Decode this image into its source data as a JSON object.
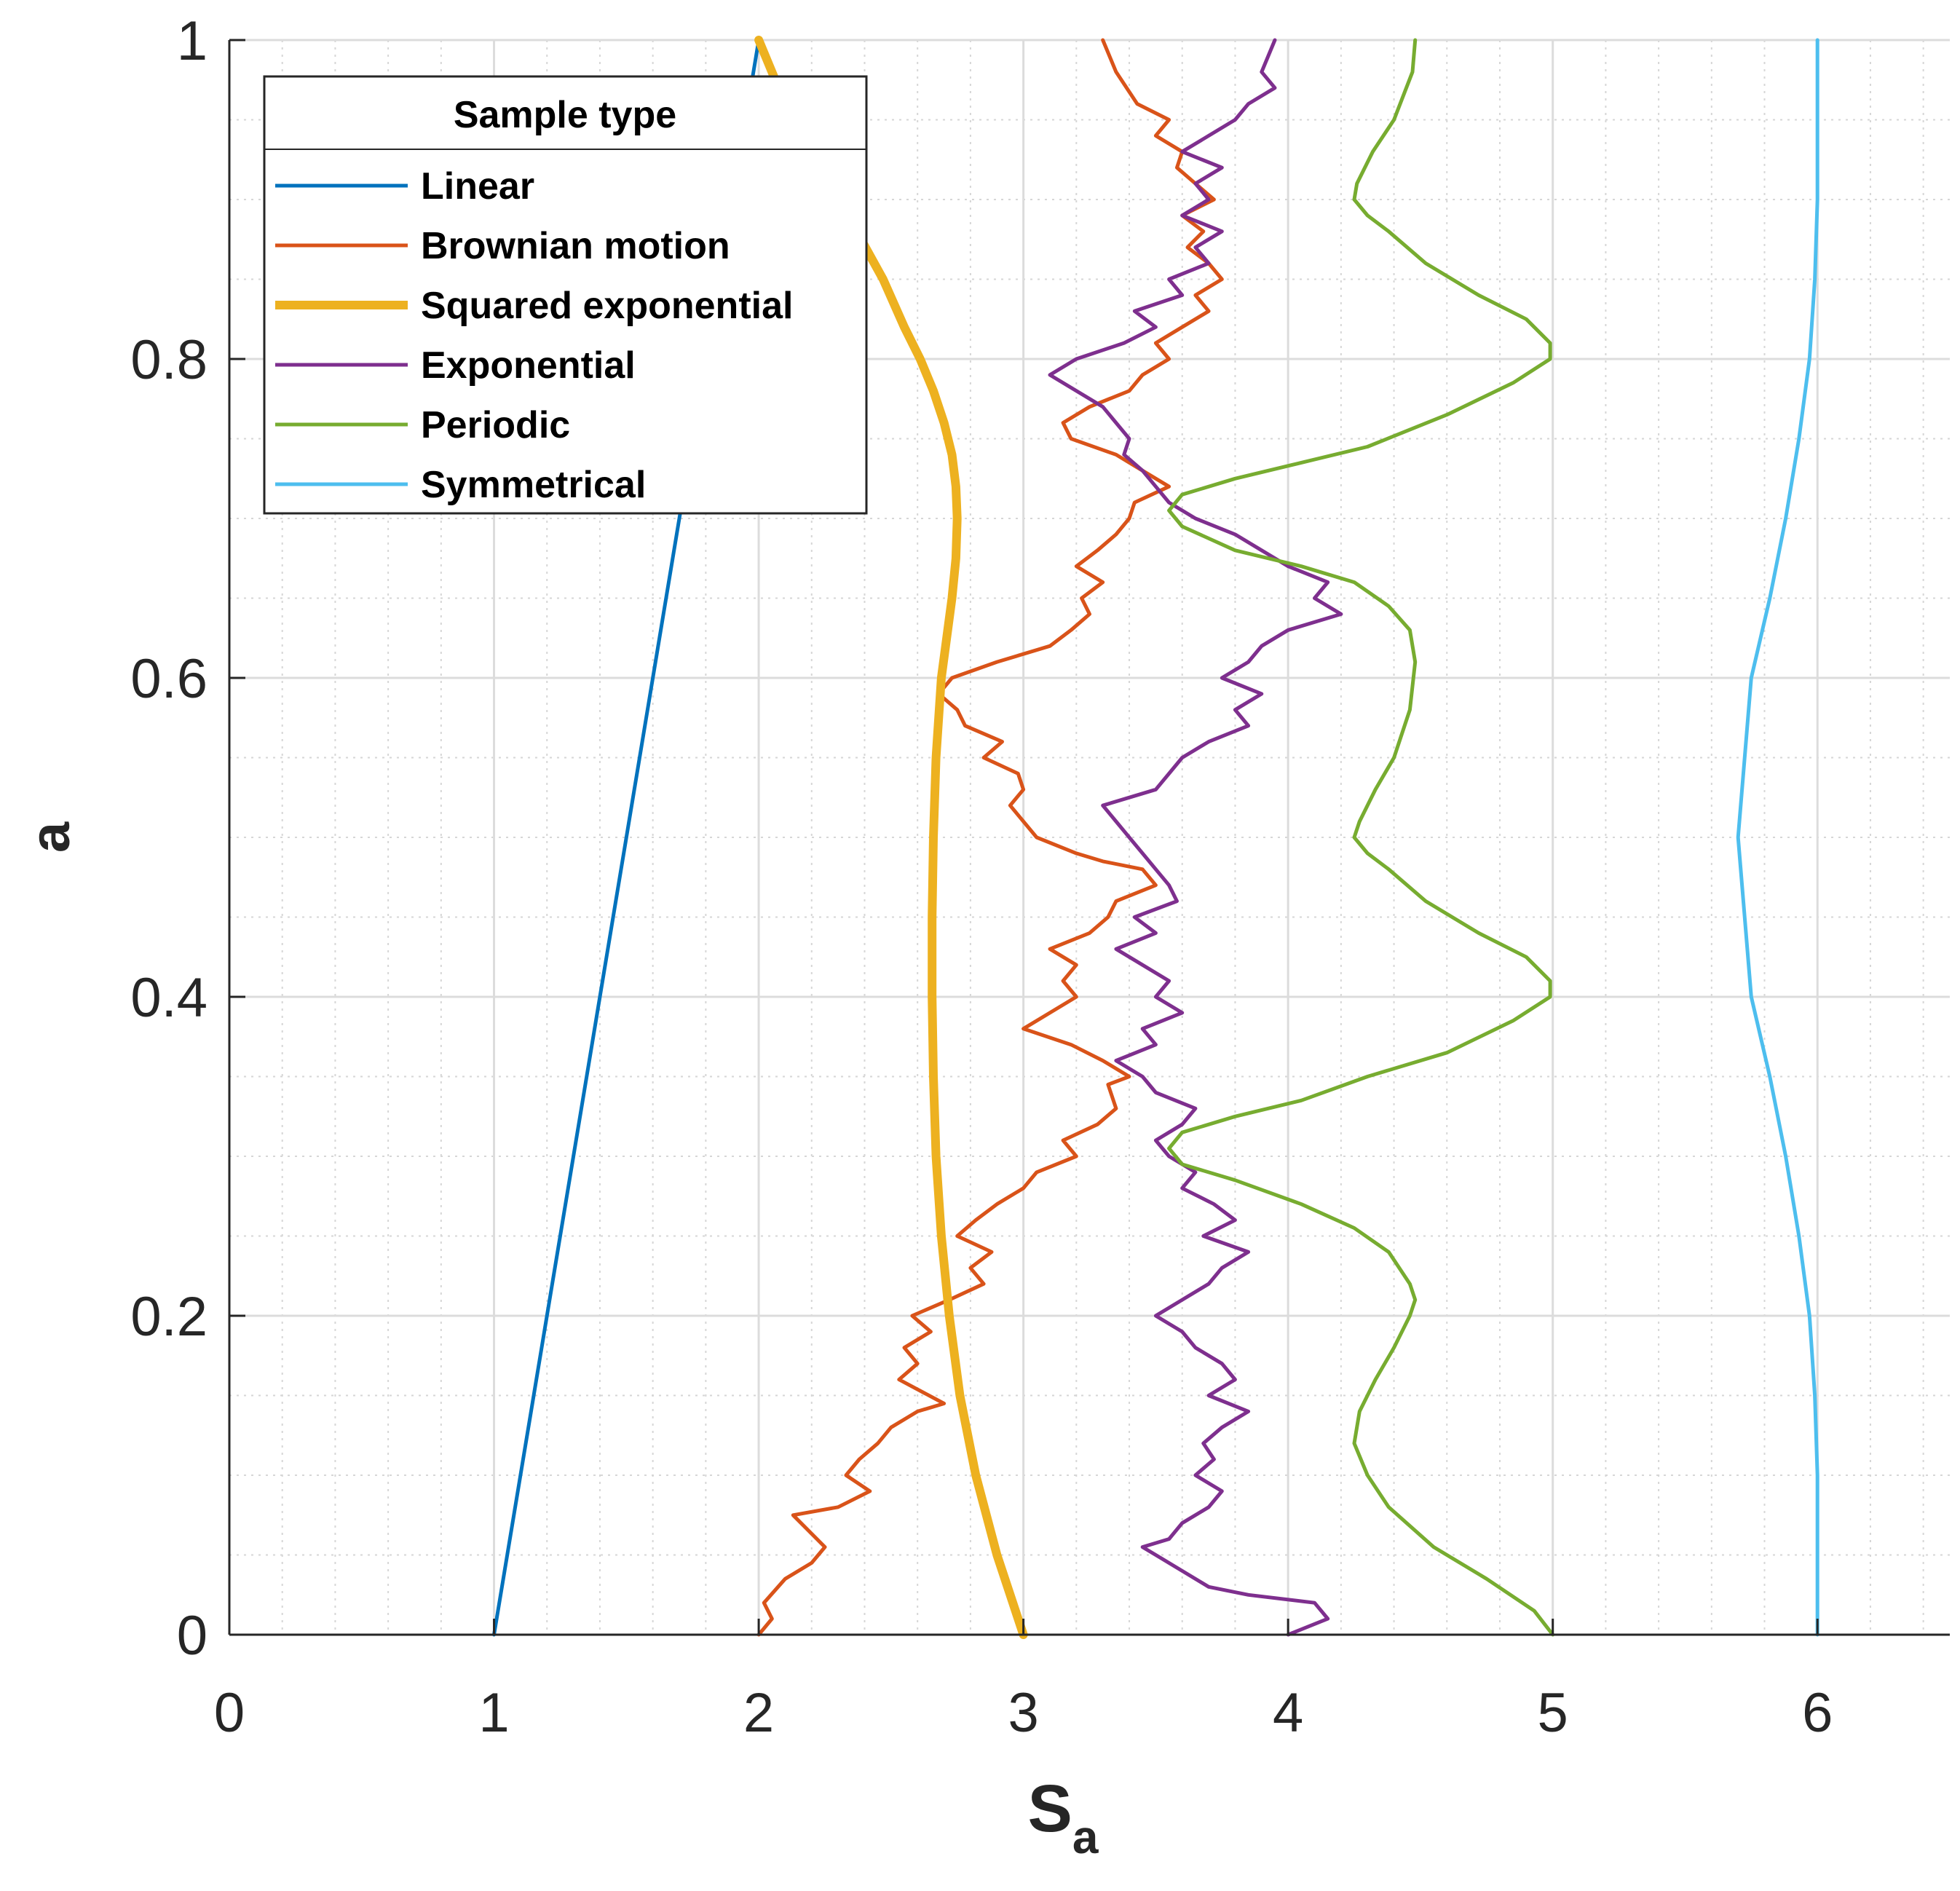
{
  "chart_data": {
    "type": "line",
    "title": "",
    "xlabel": "S",
    "xlabel_subscript": "a",
    "ylabel": "a",
    "xlim": [
      0,
      6.5
    ],
    "ylim": [
      0,
      1
    ],
    "xticks": [
      0,
      1,
      2,
      3,
      4,
      5,
      6
    ],
    "xtick_labels": [
      "0",
      "1",
      "2",
      "3",
      "4",
      "5",
      "6"
    ],
    "yticks": [
      0,
      0.2,
      0.4,
      0.6,
      0.8,
      1
    ],
    "ytick_labels": [
      "0",
      "0.2",
      "0.4",
      "0.6",
      "0.8",
      "1"
    ],
    "grid": "major and minor",
    "legend_title": "Sample type",
    "legend_position": "top-left",
    "series": [
      {
        "name": "Linear",
        "color": "#0072BD",
        "x": [
          1.0,
          2.0
        ],
        "y": [
          0.0,
          1.0
        ]
      },
      {
        "name": "Brownian motion",
        "color": "#D95319",
        "x": [
          2.0,
          2.05,
          2.02,
          2.1,
          2.2,
          2.25,
          2.13,
          2.3,
          2.42,
          2.33,
          2.38,
          2.45,
          2.5,
          2.6,
          2.7,
          2.53,
          2.6,
          2.55,
          2.65,
          2.58,
          2.72,
          2.85,
          2.8,
          2.88,
          2.75,
          2.82,
          2.9,
          3.0,
          3.05,
          3.2,
          3.15,
          3.28,
          3.35,
          3.32,
          3.4,
          3.3,
          3.18,
          3.0,
          3.1,
          3.2,
          3.15,
          3.2,
          3.1,
          3.25,
          3.32,
          3.35,
          3.5,
          3.45,
          3.3,
          3.2,
          3.05,
          3.0,
          2.95,
          3.0,
          2.98,
          2.85,
          2.92,
          2.78,
          2.75,
          2.68,
          2.73,
          2.9,
          3.1,
          3.18,
          3.25,
          3.22,
          3.3,
          3.2,
          3.28,
          3.35,
          3.4,
          3.42,
          3.55,
          3.45,
          3.35,
          3.18,
          3.15,
          3.25,
          3.4,
          3.45,
          3.55,
          3.5,
          3.6,
          3.7,
          3.65,
          3.75,
          3.7,
          3.62,
          3.68,
          3.6,
          3.72,
          3.65,
          3.58,
          3.6,
          3.5,
          3.55,
          3.43,
          3.35,
          3.3
        ],
        "y": [
          0.0,
          0.01,
          0.02,
          0.035,
          0.045,
          0.055,
          0.075,
          0.08,
          0.09,
          0.1,
          0.11,
          0.12,
          0.13,
          0.14,
          0.145,
          0.16,
          0.17,
          0.18,
          0.19,
          0.2,
          0.21,
          0.22,
          0.23,
          0.24,
          0.25,
          0.26,
          0.27,
          0.28,
          0.29,
          0.3,
          0.31,
          0.32,
          0.33,
          0.345,
          0.35,
          0.36,
          0.37,
          0.38,
          0.39,
          0.4,
          0.41,
          0.42,
          0.43,
          0.44,
          0.45,
          0.46,
          0.47,
          0.48,
          0.485,
          0.49,
          0.5,
          0.51,
          0.52,
          0.53,
          0.54,
          0.55,
          0.56,
          0.57,
          0.58,
          0.59,
          0.6,
          0.61,
          0.62,
          0.63,
          0.64,
          0.65,
          0.66,
          0.67,
          0.68,
          0.69,
          0.7,
          0.71,
          0.72,
          0.73,
          0.74,
          0.75,
          0.76,
          0.77,
          0.78,
          0.79,
          0.8,
          0.81,
          0.82,
          0.83,
          0.84,
          0.85,
          0.86,
          0.87,
          0.88,
          0.89,
          0.9,
          0.91,
          0.92,
          0.93,
          0.94,
          0.95,
          0.96,
          0.98,
          1.0
        ]
      },
      {
        "name": "Squared exponential",
        "color": "#EDB120",
        "x": [
          3.0,
          2.9,
          2.82,
          2.76,
          2.72,
          2.69,
          2.67,
          2.66,
          2.655,
          2.655,
          2.66,
          2.67,
          2.69,
          2.71,
          2.73,
          2.745,
          2.75,
          2.745,
          2.73,
          2.7,
          2.66,
          2.61,
          2.55,
          2.47,
          2.37,
          2.24,
          2.1,
          2.0
        ],
        "y": [
          0.0,
          0.05,
          0.1,
          0.15,
          0.2,
          0.25,
          0.3,
          0.35,
          0.4,
          0.45,
          0.5,
          0.55,
          0.6,
          0.625,
          0.65,
          0.675,
          0.7,
          0.72,
          0.74,
          0.76,
          0.78,
          0.8,
          0.82,
          0.85,
          0.88,
          0.92,
          0.96,
          1.0
        ]
      },
      {
        "name": "Exponential",
        "color": "#7E2F8E",
        "x": [
          4.0,
          4.15,
          4.1,
          3.85,
          3.7,
          3.6,
          3.5,
          3.45,
          3.55,
          3.6,
          3.7,
          3.75,
          3.65,
          3.72,
          3.68,
          3.75,
          3.85,
          3.7,
          3.8,
          3.75,
          3.65,
          3.6,
          3.5,
          3.6,
          3.7,
          3.75,
          3.85,
          3.68,
          3.8,
          3.72,
          3.6,
          3.65,
          3.55,
          3.5,
          3.6,
          3.65,
          3.5,
          3.45,
          3.35,
          3.5,
          3.45,
          3.6,
          3.5,
          3.55,
          3.45,
          3.35,
          3.5,
          3.42,
          3.58,
          3.55,
          3.5,
          3.45,
          3.4,
          3.35,
          3.3,
          3.5,
          3.55,
          3.6,
          3.7,
          3.85,
          3.8,
          3.9,
          3.75,
          3.85,
          3.9,
          4.0,
          4.2,
          4.1,
          4.15,
          4.0,
          3.9,
          3.8,
          3.65,
          3.55,
          3.5,
          3.45,
          3.38,
          3.4,
          3.3,
          3.1,
          3.2,
          3.38,
          3.5,
          3.42,
          3.6,
          3.55,
          3.7,
          3.65,
          3.75,
          3.6,
          3.7,
          3.65,
          3.75,
          3.6,
          3.7,
          3.8,
          3.85,
          3.95,
          3.9,
          3.95
        ],
        "y": [
          0.0,
          0.01,
          0.02,
          0.025,
          0.03,
          0.04,
          0.05,
          0.055,
          0.06,
          0.07,
          0.08,
          0.09,
          0.1,
          0.11,
          0.12,
          0.13,
          0.14,
          0.15,
          0.16,
          0.17,
          0.18,
          0.19,
          0.2,
          0.21,
          0.22,
          0.23,
          0.24,
          0.25,
          0.26,
          0.27,
          0.28,
          0.29,
          0.3,
          0.31,
          0.32,
          0.33,
          0.34,
          0.35,
          0.36,
          0.37,
          0.38,
          0.39,
          0.4,
          0.41,
          0.42,
          0.43,
          0.44,
          0.45,
          0.46,
          0.47,
          0.48,
          0.49,
          0.5,
          0.51,
          0.52,
          0.53,
          0.54,
          0.55,
          0.56,
          0.57,
          0.58,
          0.59,
          0.6,
          0.61,
          0.62,
          0.63,
          0.64,
          0.65,
          0.66,
          0.67,
          0.68,
          0.69,
          0.7,
          0.71,
          0.72,
          0.73,
          0.74,
          0.75,
          0.77,
          0.79,
          0.8,
          0.81,
          0.82,
          0.83,
          0.84,
          0.85,
          0.86,
          0.87,
          0.88,
          0.89,
          0.9,
          0.91,
          0.92,
          0.93,
          0.94,
          0.95,
          0.96,
          0.97,
          0.98,
          1.0
        ]
      },
      {
        "name": "Periodic",
        "color": "#77AC30",
        "x": [
          5.0,
          4.93,
          4.75,
          4.55,
          4.38,
          4.3,
          4.25,
          4.27,
          4.33,
          4.4,
          4.46,
          4.48,
          4.46,
          4.38,
          4.25,
          4.05,
          3.8,
          3.6,
          3.55,
          3.6,
          3.8,
          4.05,
          4.3,
          4.6,
          4.85,
          4.99,
          4.99,
          4.9,
          4.72,
          4.52,
          4.38,
          4.3,
          4.25,
          4.27,
          4.33,
          4.4,
          4.46,
          4.48,
          4.46,
          4.38,
          4.25,
          4.05,
          3.8,
          3.6,
          3.55,
          3.6,
          3.8,
          4.05,
          4.3,
          4.6,
          4.85,
          4.99,
          4.99,
          4.9,
          4.72,
          4.52,
          4.38,
          4.3,
          4.25,
          4.26,
          4.32,
          4.4,
          4.47,
          4.48
        ],
        "y": [
          0.0,
          0.015,
          0.035,
          0.055,
          0.08,
          0.1,
          0.12,
          0.14,
          0.16,
          0.18,
          0.2,
          0.21,
          0.22,
          0.24,
          0.255,
          0.27,
          0.285,
          0.295,
          0.305,
          0.315,
          0.325,
          0.335,
          0.35,
          0.365,
          0.385,
          0.4,
          0.41,
          0.425,
          0.44,
          0.46,
          0.48,
          0.49,
          0.5,
          0.51,
          0.53,
          0.55,
          0.58,
          0.61,
          0.63,
          0.645,
          0.66,
          0.67,
          0.68,
          0.695,
          0.705,
          0.715,
          0.725,
          0.735,
          0.745,
          0.765,
          0.785,
          0.8,
          0.81,
          0.825,
          0.84,
          0.86,
          0.88,
          0.89,
          0.9,
          0.91,
          0.93,
          0.95,
          0.98,
          1.0
        ]
      },
      {
        "name": "Symmetrical",
        "color": "#4DBEEE",
        "x": [
          6.0,
          6.0,
          6.0,
          5.99,
          5.97,
          5.93,
          5.88,
          5.82,
          5.75,
          5.7,
          5.75,
          5.82,
          5.88,
          5.93,
          5.97,
          5.99,
          6.0,
          6.0,
          6.0
        ],
        "y": [
          0.0,
          0.05,
          0.1,
          0.15,
          0.2,
          0.25,
          0.3,
          0.35,
          0.4,
          0.5,
          0.6,
          0.65,
          0.7,
          0.75,
          0.8,
          0.85,
          0.9,
          0.95,
          1.0
        ]
      }
    ]
  }
}
